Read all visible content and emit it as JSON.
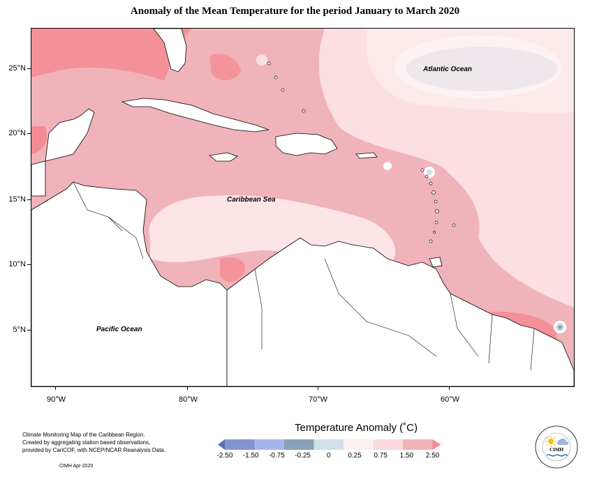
{
  "title": "Anomaly of the Mean Temperature for the period January to March 2020",
  "map": {
    "ocean_labels": {
      "atlantic": "Atlantic Ocean",
      "caribbean": "Caribbean Sea",
      "pacific": "Pacific Ocean"
    },
    "lat_labels": [
      "25°N",
      "20°N",
      "15°N",
      "10°N",
      "5°N"
    ],
    "lon_labels": [
      "90°W",
      "80°W",
      "70°W",
      "60°W"
    ]
  },
  "legend": {
    "title": "Temperature Anomaly (˚C)",
    "labels": [
      "-2.50",
      "-1.50",
      "-0.75",
      "-0.25",
      "0",
      "0.25",
      "0.75",
      "1.50",
      "2.50"
    ],
    "colors": [
      "#5f70b0",
      "#8494d2",
      "#a7b5ee",
      "#8aa0b8",
      "#cfe0e8",
      "#fbeff0",
      "#fbd9dd",
      "#f1b3b8",
      "#f48b92"
    ]
  },
  "credit": {
    "line1": "Climate Monitoring Map of the Caribbean Region.",
    "line2": "Created by aggregating station based observations,",
    "line3": "provided by CariCOF, with NCEP/NCAR Reanalysis Data.",
    "date": "CIMH Apr-2020"
  },
  "logo": {
    "text": "CIMH"
  }
}
